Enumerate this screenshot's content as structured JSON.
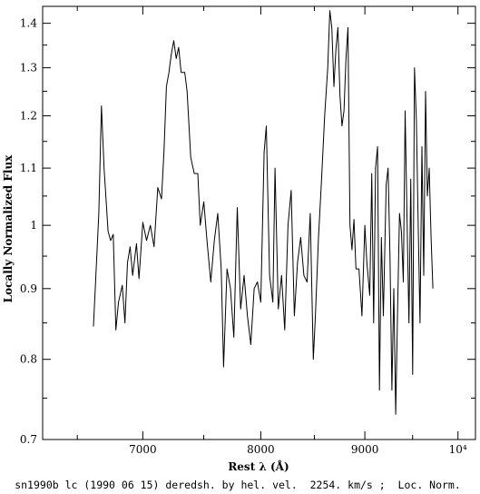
{
  "chart_data": {
    "type": "line",
    "title": "",
    "caption": "sn1990b lc (1990 06 15) deredsh. by hel. vel.  2254. km/s ;  Loc. Norm.",
    "xlabel": "Rest λ (Å)",
    "ylabel": "Locally Normalized Flux",
    "x_scale": "log",
    "y_scale": "log",
    "xlim": [
      6250,
      10200
    ],
    "ylim": [
      0.7,
      1.44
    ],
    "x_major_ticks": [
      {
        "value": 7000,
        "label": "7000"
      },
      {
        "value": 8000,
        "label": "8000"
      },
      {
        "value": 9000,
        "label": "9000"
      },
      {
        "value": 10000,
        "label": "10⁴"
      }
    ],
    "x_minor_ticks": [
      6500,
      7500,
      8500,
      9500
    ],
    "y_major_ticks": [
      {
        "value": 0.7,
        "label": "0.7"
      },
      {
        "value": 0.8,
        "label": "0.8"
      },
      {
        "value": 0.9,
        "label": "0.9"
      },
      {
        "value": 1.0,
        "label": "1"
      },
      {
        "value": 1.1,
        "label": "1.1"
      },
      {
        "value": 1.2,
        "label": "1.2"
      },
      {
        "value": 1.3,
        "label": "1.3"
      },
      {
        "value": 1.4,
        "label": "1.4"
      }
    ],
    "grid": false,
    "series": [
      {
        "color": "#000000",
        "points": [
          [
            6620,
            0.845
          ],
          [
            6660,
            1.02
          ],
          [
            6680,
            1.22
          ],
          [
            6700,
            1.1
          ],
          [
            6730,
            0.99
          ],
          [
            6750,
            0.975
          ],
          [
            6770,
            0.985
          ],
          [
            6790,
            0.84
          ],
          [
            6810,
            0.88
          ],
          [
            6840,
            0.905
          ],
          [
            6860,
            0.85
          ],
          [
            6880,
            0.94
          ],
          [
            6900,
            0.965
          ],
          [
            6920,
            0.92
          ],
          [
            6950,
            0.97
          ],
          [
            6970,
            0.915
          ],
          [
            7000,
            1.005
          ],
          [
            7030,
            0.975
          ],
          [
            7060,
            1.0
          ],
          [
            7090,
            0.965
          ],
          [
            7120,
            1.065
          ],
          [
            7150,
            1.045
          ],
          [
            7170,
            1.13
          ],
          [
            7190,
            1.26
          ],
          [
            7210,
            1.29
          ],
          [
            7230,
            1.33
          ],
          [
            7250,
            1.36
          ],
          [
            7270,
            1.32
          ],
          [
            7290,
            1.345
          ],
          [
            7310,
            1.29
          ],
          [
            7340,
            1.29
          ],
          [
            7360,
            1.25
          ],
          [
            7390,
            1.12
          ],
          [
            7420,
            1.09
          ],
          [
            7450,
            1.09
          ],
          [
            7470,
            1.0
          ],
          [
            7500,
            1.04
          ],
          [
            7530,
            0.97
          ],
          [
            7560,
            0.91
          ],
          [
            7590,
            0.975
          ],
          [
            7620,
            1.02
          ],
          [
            7650,
            0.93
          ],
          [
            7670,
            0.79
          ],
          [
            7700,
            0.93
          ],
          [
            7730,
            0.9
          ],
          [
            7760,
            0.83
          ],
          [
            7790,
            1.03
          ],
          [
            7820,
            0.87
          ],
          [
            7850,
            0.92
          ],
          [
            7880,
            0.86
          ],
          [
            7910,
            0.82
          ],
          [
            7940,
            0.9
          ],
          [
            7970,
            0.91
          ],
          [
            8000,
            0.88
          ],
          [
            8030,
            1.13
          ],
          [
            8050,
            1.18
          ],
          [
            8080,
            0.92
          ],
          [
            8110,
            0.88
          ],
          [
            8130,
            1.1
          ],
          [
            8160,
            0.87
          ],
          [
            8190,
            0.92
          ],
          [
            8220,
            0.84
          ],
          [
            8250,
            1.0
          ],
          [
            8280,
            1.06
          ],
          [
            8310,
            0.86
          ],
          [
            8340,
            0.94
          ],
          [
            8370,
            0.98
          ],
          [
            8400,
            0.92
          ],
          [
            8430,
            0.91
          ],
          [
            8460,
            1.02
          ],
          [
            8490,
            0.8
          ],
          [
            8510,
            0.86
          ],
          [
            8540,
            0.98
          ],
          [
            8570,
            1.08
          ],
          [
            8600,
            1.2
          ],
          [
            8630,
            1.3
          ],
          [
            8650,
            1.43
          ],
          [
            8670,
            1.39
          ],
          [
            8690,
            1.26
          ],
          [
            8710,
            1.34
          ],
          [
            8730,
            1.39
          ],
          [
            8750,
            1.24
          ],
          [
            8770,
            1.18
          ],
          [
            8790,
            1.21
          ],
          [
            8810,
            1.32
          ],
          [
            8830,
            1.39
          ],
          [
            8850,
            1.0
          ],
          [
            8870,
            0.96
          ],
          [
            8890,
            1.01
          ],
          [
            8910,
            0.93
          ],
          [
            8940,
            0.93
          ],
          [
            8970,
            0.86
          ],
          [
            9000,
            1.0
          ],
          [
            9020,
            0.94
          ],
          [
            9050,
            0.89
          ],
          [
            9070,
            1.09
          ],
          [
            9090,
            0.85
          ],
          [
            9110,
            1.1
          ],
          [
            9130,
            1.14
          ],
          [
            9150,
            0.76
          ],
          [
            9170,
            0.98
          ],
          [
            9190,
            0.86
          ],
          [
            9220,
            1.07
          ],
          [
            9240,
            1.1
          ],
          [
            9260,
            0.95
          ],
          [
            9280,
            0.76
          ],
          [
            9300,
            0.9
          ],
          [
            9320,
            0.73
          ],
          [
            9340,
            0.87
          ],
          [
            9360,
            1.02
          ],
          [
            9380,
            0.99
          ],
          [
            9400,
            0.91
          ],
          [
            9420,
            1.21
          ],
          [
            9440,
            1.01
          ],
          [
            9460,
            0.85
          ],
          [
            9480,
            1.08
          ],
          [
            9500,
            0.78
          ],
          [
            9520,
            1.3
          ],
          [
            9540,
            1.19
          ],
          [
            9560,
            1.0
          ],
          [
            9580,
            0.85
          ],
          [
            9600,
            1.14
          ],
          [
            9620,
            0.92
          ],
          [
            9640,
            1.25
          ],
          [
            9660,
            1.05
          ],
          [
            9680,
            1.1
          ],
          [
            9700,
            0.98
          ],
          [
            9720,
            0.9
          ]
        ]
      }
    ]
  }
}
